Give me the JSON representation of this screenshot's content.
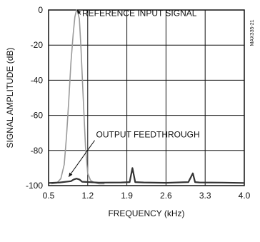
{
  "chart_data": {
    "type": "line",
    "title": "",
    "xlabel": "FREQUENCY (kHz)",
    "ylabel": "SIGNAL AMPLITUDE (dB)",
    "xlim": [
      0.5,
      4.0
    ],
    "ylim": [
      -100,
      0
    ],
    "xticks": [
      "0.5",
      "1.2",
      "1.9",
      "2.6",
      "3.3",
      "4.0"
    ],
    "yticks": [
      "0",
      "-20",
      "-40",
      "-60",
      "-80",
      "-100"
    ],
    "grid": true,
    "part_number": "MAX335-21",
    "series": [
      {
        "name": "REFERENCE INPUT SIGNAL",
        "color": "#9a9a9a",
        "x": [
          0.55,
          0.65,
          0.72,
          0.78,
          0.82,
          0.86,
          0.9,
          0.94,
          0.97,
          1.0,
          1.02,
          1.05,
          1.08,
          1.12,
          1.16,
          1.2,
          1.25,
          1.3,
          1.35,
          1.4,
          1.5
        ],
        "y": [
          -99,
          -98.5,
          -96,
          -88,
          -72,
          -52,
          -30,
          -14,
          -4,
          0,
          -1,
          -5,
          -22,
          -50,
          -78,
          -93,
          -97,
          -98,
          -98.5,
          -99,
          -99
        ]
      },
      {
        "name": "OUTPUT FEEDTHROUGH",
        "color": "#333333",
        "x": [
          0.5,
          0.7,
          0.9,
          0.95,
          1.0,
          1.05,
          1.1,
          1.4,
          1.8,
          1.95,
          2.0,
          2.05,
          2.2,
          2.6,
          3.0,
          3.08,
          3.12,
          3.2,
          3.6,
          4.0
        ],
        "y": [
          -98.5,
          -98.2,
          -97.5,
          -96.5,
          -96,
          -96.5,
          -97.8,
          -98.3,
          -98.2,
          -98,
          -90,
          -98,
          -98.2,
          -98.4,
          -98,
          -93,
          -98,
          -98.2,
          -98.3,
          -98.5
        ]
      }
    ],
    "annotations": [
      {
        "text": "REFERENCE INPUT SIGNAL",
        "x": 1.1,
        "y": -1.8,
        "target_x": 1.01,
        "target_y": 0
      },
      {
        "text": "OUTPUT FEEDTHROUGH",
        "x": 1.35,
        "y": -71,
        "target_x": 0.86,
        "target_y": -95
      }
    ]
  }
}
